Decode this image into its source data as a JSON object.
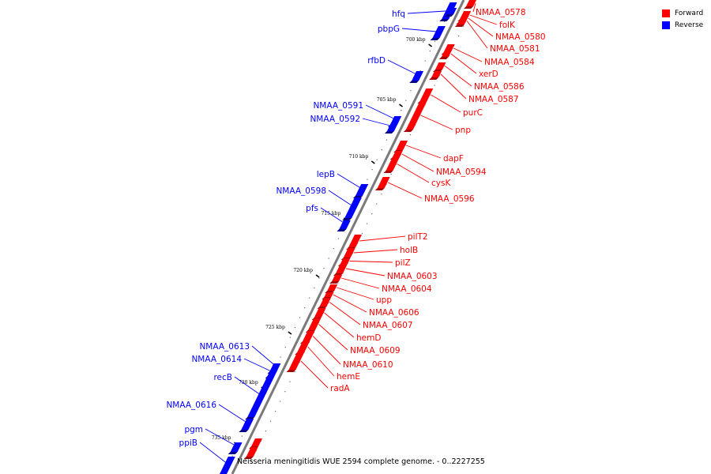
{
  "legend": {
    "forward": {
      "label": "Forward",
      "color": "#ff0000"
    },
    "reverse": {
      "label": "Reverse",
      "color": "#0000ff"
    }
  },
  "caption": "Neisseria meningitidis WUE 2594 complete genome. - 0..2227255",
  "scale_unit": "kbp",
  "ticks": [
    "700 kbp",
    "705 kbp",
    "710 kbp",
    "715 kbp",
    "720 kbp",
    "725 kbp",
    "730 kbp",
    "735 kbp"
  ],
  "genes_forward": [
    "NMAA_0578",
    "folK",
    "NMAA_0580",
    "NMAA_0581",
    "NMAA_0584",
    "xerD",
    "NMAA_0586",
    "NMAA_0587",
    "purC",
    "pnp",
    "dapF",
    "NMAA_0594",
    "cysK",
    "NMAA_0596",
    "pilT2",
    "holB",
    "pilZ",
    "NMAA_0603",
    "NMAA_0604",
    "upp",
    "NMAA_0606",
    "NMAA_0607",
    "hemD",
    "NMAA_0609",
    "NMAA_0610",
    "hemE",
    "radA"
  ],
  "genes_reverse": [
    "hfq",
    "pbpG",
    "rfbD",
    "NMAA_0591",
    "NMAA_0592",
    "lepB",
    "NMAA_0598",
    "pfs",
    "NMAA_0613",
    "NMAA_0614",
    "recB",
    "NMAA_0616",
    "pgm",
    "ppiB"
  ]
}
